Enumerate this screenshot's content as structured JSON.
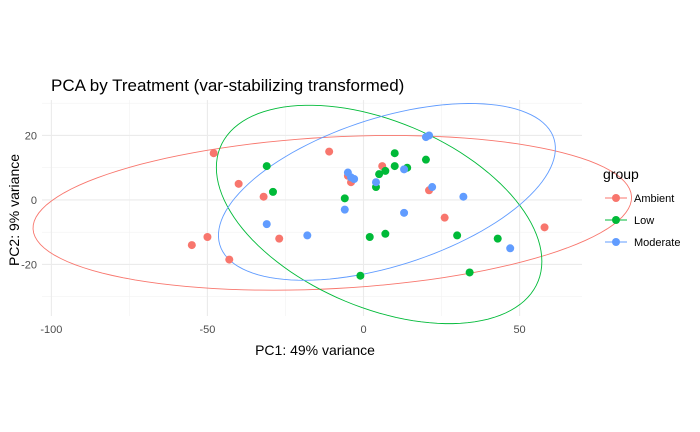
{
  "chart_data": {
    "type": "scatter",
    "title": "PCA by Treatment (var-stabilizing transformed)",
    "xlabel": "PC1: 49% variance",
    "ylabel": "PC2: 9% variance",
    "xlim": [
      -103,
      70
    ],
    "ylim": [
      -36,
      31
    ],
    "x_ticks": [
      -100,
      -50,
      0,
      50
    ],
    "y_ticks": [
      -20,
      0,
      20
    ],
    "x_tick_labels": [
      "-100",
      "-50",
      "0",
      "50"
    ],
    "y_tick_labels": [
      "-20",
      "0",
      "20"
    ],
    "grid": true,
    "legend": {
      "title": "group",
      "position": "right"
    },
    "series": [
      {
        "name": "Ambient",
        "color": "#F8766D",
        "points": [
          {
            "x": -48,
            "y": 14.5
          },
          {
            "x": -40,
            "y": 5
          },
          {
            "x": -32,
            "y": 1
          },
          {
            "x": -50,
            "y": -11.5
          },
          {
            "x": -55,
            "y": -14
          },
          {
            "x": -43,
            "y": -18.5
          },
          {
            "x": -27,
            "y": -12
          },
          {
            "x": -11,
            "y": 15
          },
          {
            "x": -5,
            "y": 7.5
          },
          {
            "x": -4,
            "y": 5.5
          },
          {
            "x": 6,
            "y": 10.5
          },
          {
            "x": 21,
            "y": 3
          },
          {
            "x": 26,
            "y": -5.5
          },
          {
            "x": 58,
            "y": -8.5
          }
        ],
        "ellipse": {
          "center": [
            -10,
            -4
          ],
          "semi_axes": [
            96,
            23.5
          ],
          "angle_deg": 3
        }
      },
      {
        "name": "Low",
        "color": "#00BA38",
        "points": [
          {
            "x": -31,
            "y": 10.5
          },
          {
            "x": -29,
            "y": 2.5
          },
          {
            "x": -6,
            "y": 0.5
          },
          {
            "x": 4,
            "y": 4
          },
          {
            "x": 5,
            "y": 8
          },
          {
            "x": 7,
            "y": 9
          },
          {
            "x": 10,
            "y": 14.5
          },
          {
            "x": 10,
            "y": 10.5
          },
          {
            "x": 14,
            "y": 10
          },
          {
            "x": 20,
            "y": 12.5
          },
          {
            "x": 2,
            "y": -11.5
          },
          {
            "x": 7,
            "y": -10.5
          },
          {
            "x": -1,
            "y": -23.5
          },
          {
            "x": 30,
            "y": -11
          },
          {
            "x": 43,
            "y": -12
          },
          {
            "x": 34,
            "y": -22.5
          }
        ],
        "ellipse": {
          "center": [
            5,
            -4.5
          ],
          "semi_axes": [
            55,
            29
          ],
          "angle_deg": -22
        }
      },
      {
        "name": "Moderate",
        "color": "#619CFF",
        "points": [
          {
            "x": -31,
            "y": -7.5
          },
          {
            "x": -18,
            "y": -11
          },
          {
            "x": -6,
            "y": -3
          },
          {
            "x": -5,
            "y": 8.5
          },
          {
            "x": -4,
            "y": 7
          },
          {
            "x": -3,
            "y": 6.5
          },
          {
            "x": 4,
            "y": 5.5
          },
          {
            "x": 13,
            "y": 9.5
          },
          {
            "x": 13,
            "y": -4
          },
          {
            "x": 20,
            "y": 19.5
          },
          {
            "x": 21,
            "y": 20
          },
          {
            "x": 22,
            "y": 4
          },
          {
            "x": 32,
            "y": 1
          },
          {
            "x": 47,
            "y": -15
          }
        ],
        "ellipse": {
          "center": [
            7.5,
            2.5
          ],
          "semi_axes": [
            56,
            23
          ],
          "angle_deg": 17
        }
      }
    ]
  }
}
